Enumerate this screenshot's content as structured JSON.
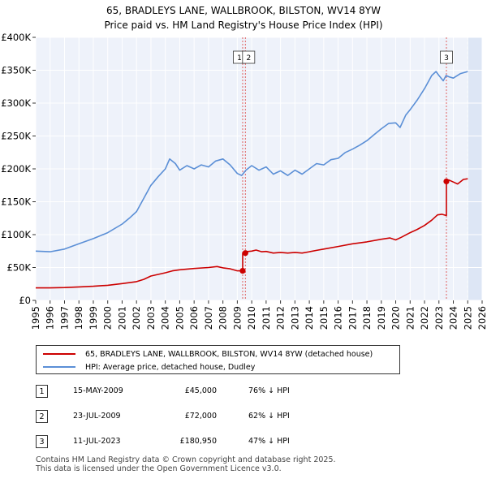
{
  "title": "65, BRADLEYS LANE, WALLBROOK, BILSTON, WV14 8YW",
  "subtitle": "Price paid vs. HM Land Registry's House Price Index (HPI)",
  "chart_data": {
    "type": "line",
    "title": "65, BRADLEYS LANE, WALLBROOK, BILSTON, WV14 8YW",
    "subtitle": "Price paid vs. HM Land Registry's House Price Index (HPI)",
    "xlim": [
      1995,
      2026
    ],
    "ylim": [
      0,
      400000
    ],
    "x_ticks": [
      "1995",
      "1996",
      "1997",
      "1998",
      "1999",
      "2000",
      "2001",
      "2002",
      "2003",
      "2004",
      "2005",
      "2006",
      "2007",
      "2008",
      "2009",
      "2010",
      "2011",
      "2012",
      "2013",
      "2014",
      "2015",
      "2016",
      "2017",
      "2018",
      "2019",
      "2020",
      "2021",
      "2022",
      "2023",
      "2024",
      "2025",
      "2026"
    ],
    "y_ticks": [
      {
        "value": 0,
        "label": "£0"
      },
      {
        "value": 50000,
        "label": "£50K"
      },
      {
        "value": 100000,
        "label": "£100K"
      },
      {
        "value": 150000,
        "label": "£150K"
      },
      {
        "value": 200000,
        "label": "£200K"
      },
      {
        "value": 250000,
        "label": "£250K"
      },
      {
        "value": 300000,
        "label": "£300K"
      },
      {
        "value": 350000,
        "label": "£350K"
      },
      {
        "value": 400000,
        "label": "£400K"
      }
    ],
    "grid": true,
    "series": [
      {
        "name": "65, BRADLEYS LANE, WALLBROOK, BILSTON, WV14 8YW (detached house)",
        "color": "#cc0000",
        "x": [
          1995.0,
          1996.0,
          1997.0,
          1998.0,
          1999.0,
          2000.0,
          2001.0,
          2002.0,
          2002.5,
          2003.0,
          2004.0,
          2004.5,
          2005.0,
          2006.0,
          2007.0,
          2007.6,
          2008.0,
          2008.5,
          2009.0,
          2009.37,
          2009.37,
          2009.56,
          2009.56,
          2010.0,
          2010.3,
          2010.7,
          2011.0,
          2011.5,
          2012.0,
          2012.5,
          2013.0,
          2013.5,
          2014.0,
          2014.5,
          2015.0,
          2016.0,
          2017.0,
          2018.0,
          2019.0,
          2019.6,
          2020.0,
          2020.4,
          2021.0,
          2021.5,
          2022.0,
          2022.5,
          2022.9,
          2023.2,
          2023.52,
          2023.52,
          2023.7,
          2024.0,
          2024.3,
          2024.7,
          2025.0
        ],
        "y": [
          19000,
          19000,
          19500,
          20500,
          21500,
          23000,
          25500,
          28500,
          32000,
          37000,
          42000,
          45000,
          46500,
          48500,
          50000,
          51500,
          49500,
          48000,
          45000,
          45000,
          72000,
          72000,
          74000,
          75000,
          76500,
          74000,
          74500,
          72000,
          73000,
          72000,
          73000,
          72000,
          74000,
          76000,
          78000,
          82000,
          86000,
          89000,
          93000,
          95000,
          92000,
          96000,
          103000,
          108000,
          114000,
          122000,
          130000,
          131000,
          129000,
          180950,
          183000,
          180000,
          177000,
          184000,
          185000
        ]
      },
      {
        "name": "HPI: Average price, detached house, Dudley",
        "color": "#5b8fd6",
        "x": [
          1995.0,
          1996.0,
          1997.0,
          1998.0,
          1999.0,
          2000.0,
          2001.0,
          2001.5,
          2002.0,
          2002.5,
          2003.0,
          2003.5,
          2004.0,
          2004.3,
          2004.7,
          2005.0,
          2005.5,
          2006.0,
          2006.5,
          2007.0,
          2007.5,
          2008.0,
          2008.5,
          2009.0,
          2009.3,
          2009.6,
          2010.0,
          2010.5,
          2011.0,
          2011.5,
          2012.0,
          2012.5,
          2013.0,
          2013.5,
          2014.0,
          2014.5,
          2015.0,
          2015.5,
          2016.0,
          2016.5,
          2017.0,
          2017.5,
          2018.0,
          2018.5,
          2019.0,
          2019.5,
          2020.0,
          2020.3,
          2020.7,
          2021.0,
          2021.5,
          2022.0,
          2022.5,
          2022.8,
          2023.0,
          2023.3,
          2023.5,
          2023.7,
          2024.0,
          2024.5,
          2025.0
        ],
        "y": [
          75000,
          74000,
          78000,
          86000,
          94000,
          103000,
          116000,
          125000,
          135000,
          155000,
          175000,
          188000,
          200000,
          215000,
          208000,
          198000,
          205000,
          200000,
          206000,
          203000,
          212000,
          215000,
          206000,
          193000,
          190000,
          198000,
          205000,
          198000,
          203000,
          192000,
          197000,
          190000,
          198000,
          192000,
          200000,
          208000,
          206000,
          214000,
          216000,
          225000,
          230000,
          236000,
          243000,
          252000,
          261000,
          269000,
          270000,
          263000,
          282000,
          290000,
          305000,
          322000,
          342000,
          348000,
          342000,
          334000,
          342000,
          340000,
          338000,
          345000,
          348000
        ]
      }
    ],
    "annotations": [
      {
        "label": "1",
        "x": 2009.37
      },
      {
        "label": "2",
        "x": 2009.56
      },
      {
        "label": "3",
        "x": 2023.52
      }
    ],
    "sale_points": [
      {
        "x": 2009.37,
        "y": 45000
      },
      {
        "x": 2009.56,
        "y": 72000
      },
      {
        "x": 2023.52,
        "y": 180950
      }
    ],
    "shaded_future_from": 2025.0,
    "legend_position": "below chart"
  },
  "legend": {
    "items": [
      {
        "label": "65, BRADLEYS LANE, WALLBROOK, BILSTON, WV14 8YW (detached house)",
        "color": "#cc0000"
      },
      {
        "label": "HPI: Average price, detached house, Dudley",
        "color": "#5b8fd6"
      }
    ]
  },
  "transactions": [
    {
      "num": "1",
      "date": "15-MAY-2009",
      "price": "£45,000",
      "hpi": "76% ↓ HPI"
    },
    {
      "num": "2",
      "date": "23-JUL-2009",
      "price": "£72,000",
      "hpi": "62% ↓ HPI"
    },
    {
      "num": "3",
      "date": "11-JUL-2023",
      "price": "£180,950",
      "hpi": "47% ↓ HPI"
    }
  ],
  "footer": {
    "line1": "Contains HM Land Registry data © Crown copyright and database right 2025.",
    "line2": "This data is licensed under the Open Government Licence v3.0."
  }
}
